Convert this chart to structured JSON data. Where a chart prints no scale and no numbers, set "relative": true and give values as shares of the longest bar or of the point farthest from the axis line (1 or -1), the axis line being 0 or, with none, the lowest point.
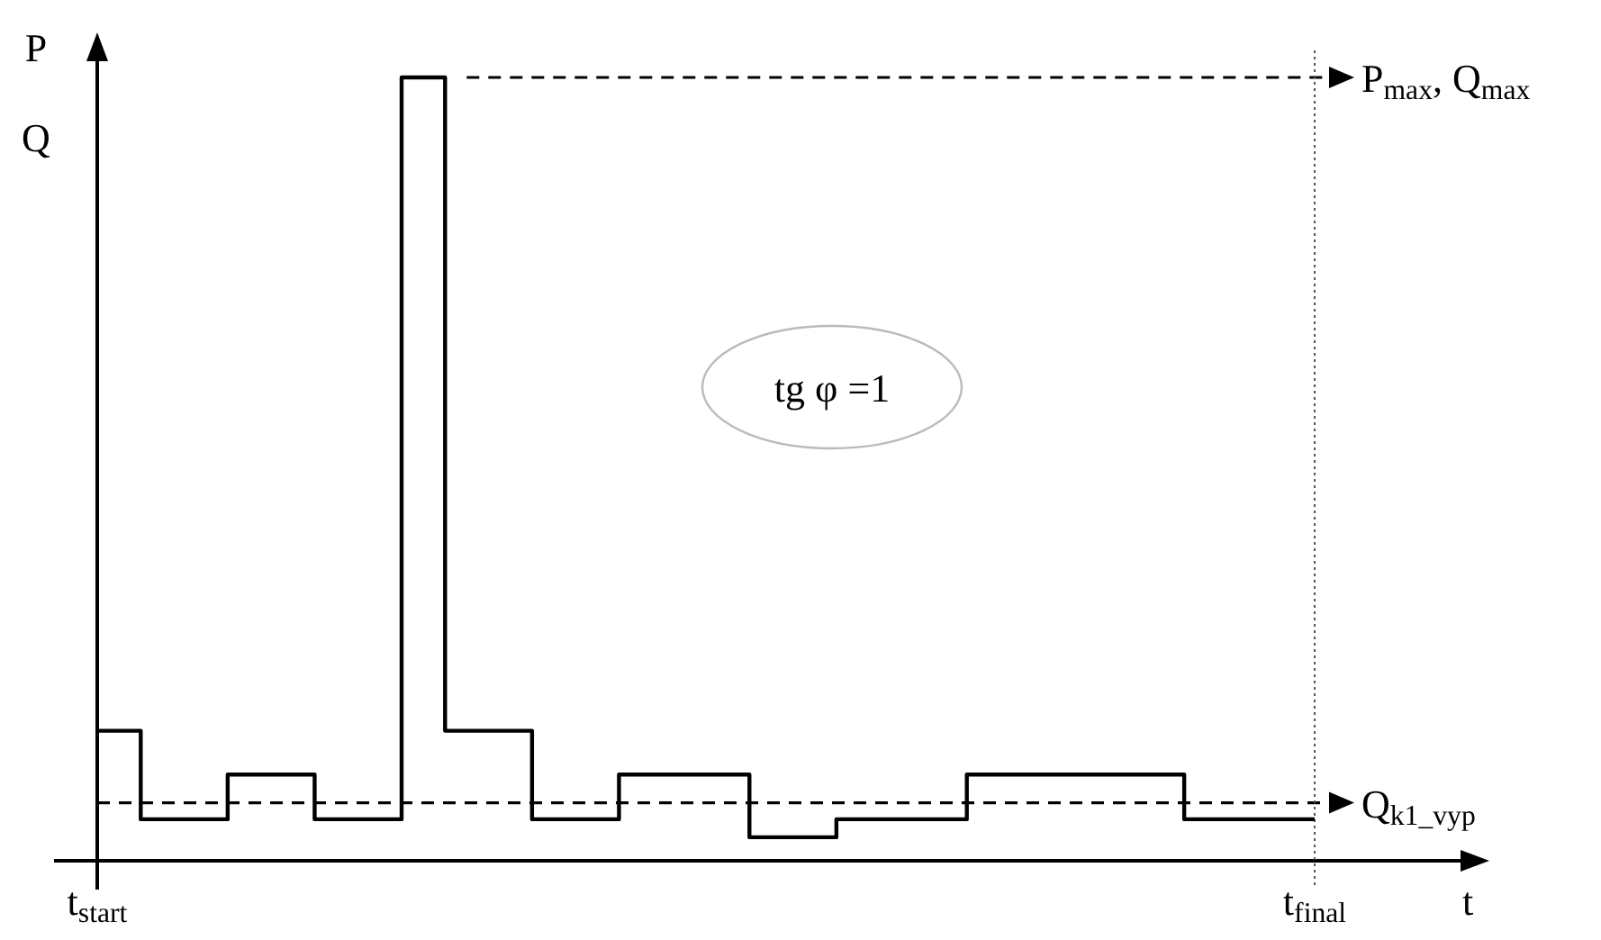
{
  "chart_data": {
    "type": "step",
    "relative": true,
    "xlabel": "t",
    "ylabel": "P\nQ",
    "categories": [
      "t$_{start}$",
      null,
      null,
      null,
      null,
      null,
      null,
      null,
      null,
      null,
      null,
      null,
      null,
      null,
      null,
      null,
      null,
      null,
      null,
      null,
      null,
      null,
      null,
      null,
      null,
      null,
      null,
      null,
      "t$_{final}$"
    ],
    "series": [
      {
        "color": "#000000",
        "values": [
          0.166,
          0.053,
          0.053,
          0.11,
          0.11,
          0.053,
          0.053,
          1,
          0.166,
          0.166,
          0.053,
          0.053,
          0.11,
          0.11,
          0.11,
          0.03,
          0.03,
          0.053,
          0.053,
          0.053,
          0.11,
          0.11,
          0.11,
          0.11,
          0.11,
          0.053,
          0.053,
          0.053,
          0.053
        ]
      }
    ],
    "ref_lines": [
      {
        "axis": "y",
        "value": 1,
        "label": "P$_{max}$, Q$_{max}$",
        "line_style": "dashed"
      },
      {
        "axis": "y",
        "value": 0.074,
        "label": "Q$_{k1_vyp}$",
        "line_style": "dashed"
      },
      {
        "axis": "x",
        "value": "t$_{final}$",
        "line_style": "dotted",
        "color": "#555555"
      }
    ],
    "annotations": [
      "tg φ =1"
    ],
    "line_style": "solid"
  }
}
